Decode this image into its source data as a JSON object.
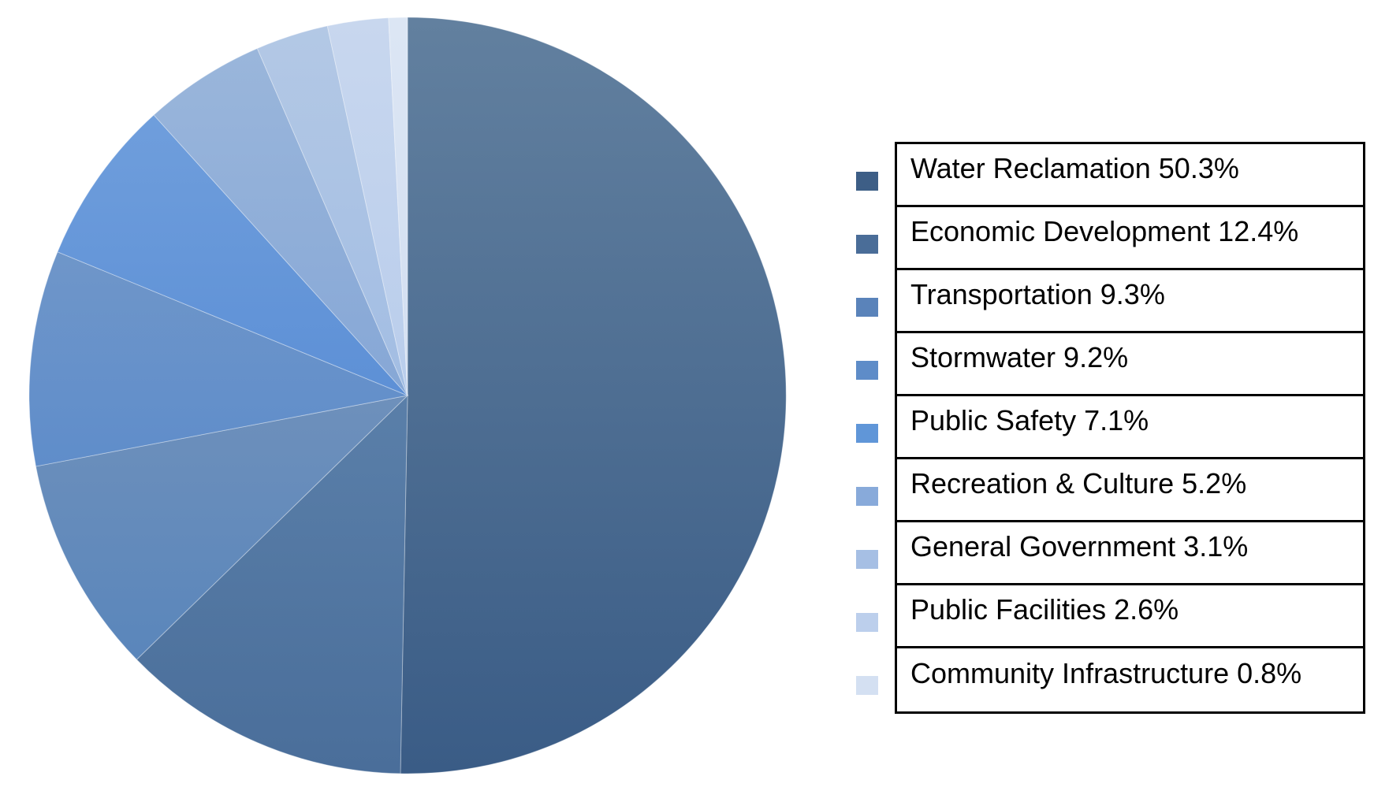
{
  "chart_data": {
    "type": "pie",
    "title": "",
    "categories": [
      "Water Reclamation",
      "Economic Development",
      "Transportation",
      "Stormwater",
      "Public Safety",
      "Recreation & Culture",
      "General Government",
      "Public Facilities",
      "Community Infrastructure"
    ],
    "values": [
      50.3,
      12.4,
      9.3,
      9.2,
      7.1,
      5.2,
      3.1,
      2.6,
      0.8
    ],
    "legend_labels": [
      "Water Reclamation 50.3%",
      "Economic Development 12.4%",
      "Transportation 9.3%",
      "Stormwater 9.2%",
      "Public Safety 7.1%",
      "Recreation & Culture 5.2%",
      "General Government 3.1%",
      "Public Facilities 2.6%",
      "Community Infrastructure 0.8%"
    ],
    "colors": [
      [
        "#62809f",
        "#3a5c86"
      ],
      [
        "#5a7fa9",
        "#4a6e9a"
      ],
      [
        "#6e90bb",
        "#5a86bb"
      ],
      [
        "#6f96c9",
        "#5f8dca"
      ],
      [
        "#6f9edc",
        "#5d90d6"
      ],
      [
        "#9ab6db",
        "#86a7d6"
      ],
      [
        "#b3c8e5",
        "#a2bde3"
      ],
      [
        "#c8d7ee",
        "#b9cdec"
      ],
      [
        "#dce6f4",
        "#d2def1"
      ]
    ],
    "swatch_colors": [
      "#3d5e86",
      "#4a6d98",
      "#5a83ba",
      "#5e8cc8",
      "#6096d8",
      "#88aada",
      "#a6bfe4",
      "#bccfec",
      "#d4e0f2"
    ],
    "start_angle_deg": 0,
    "direction": "clockwise",
    "legend_position": "right"
  }
}
